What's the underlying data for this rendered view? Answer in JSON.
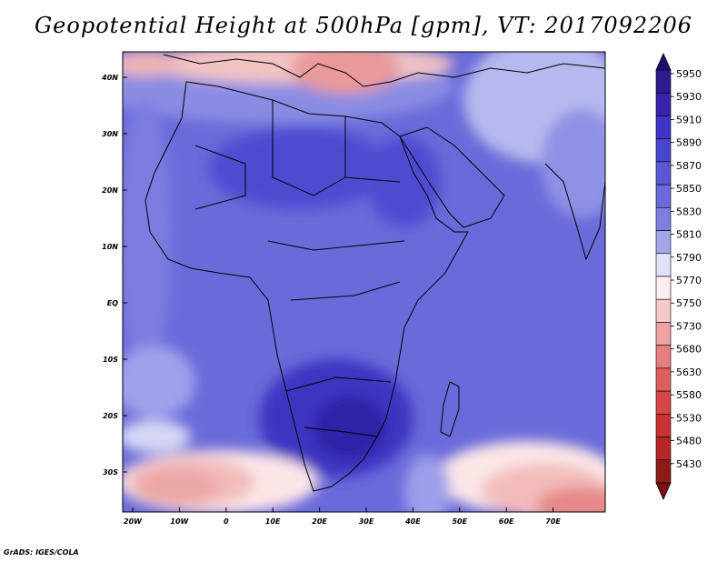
{
  "title": "Geopotential Height at 500hPa [gpm], VT: 2017092206",
  "footer": "GrADS: IGES/COLA",
  "lat_labels": [
    "40N",
    "30N",
    "20N",
    "10N",
    "EQ",
    "10S",
    "20S",
    "30S"
  ],
  "lon_labels": [
    "20W",
    "10W",
    "0",
    "10E",
    "20E",
    "30E",
    "40E",
    "50E",
    "60E",
    "70E"
  ],
  "colorbar": {
    "levels": [
      "5950",
      "5930",
      "5910",
      "5890",
      "5870",
      "5850",
      "5830",
      "5810",
      "5790",
      "5770",
      "5750",
      "5730",
      "5680",
      "5630",
      "5580",
      "5530",
      "5480",
      "5430"
    ],
    "colors": [
      "#2d1c8e",
      "#3524a9",
      "#3f34c4",
      "#4a45cf",
      "#5a58d6",
      "#6a6ada",
      "#7e7fe0",
      "#a3a6eb",
      "#dfe2f8",
      "#fdeeee",
      "#f6caca",
      "#eea2a2",
      "#e67f7f",
      "#de5e5e",
      "#d54545",
      "#c93232",
      "#b52525",
      "#8f1a1a"
    ],
    "top_arrow_color": "#1a1070",
    "bottom_arrow_color": "#7a1010"
  },
  "colors": {
    "ocean_base": "#6a6ada",
    "land_outline": "#000000"
  }
}
